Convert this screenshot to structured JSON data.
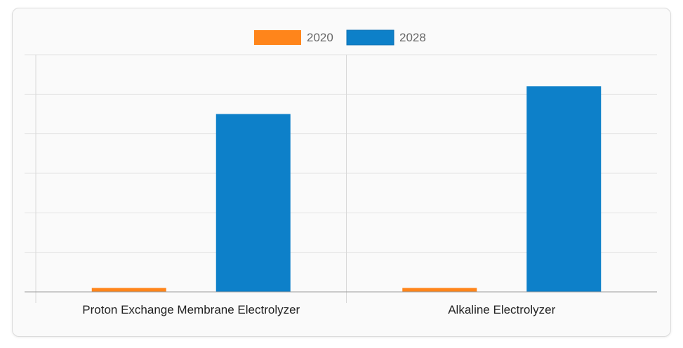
{
  "chart_data": {
    "type": "bar",
    "categories": [
      "Proton Exchange Membrane Electrolyzer",
      "Alkaline Electrolyzer"
    ],
    "series": [
      {
        "name": "2020",
        "values": [
          1,
          1
        ],
        "color": "#ff851b"
      },
      {
        "name": "2028",
        "values": [
          45,
          52
        ],
        "color": "#0d80c9"
      }
    ],
    "title": "",
    "xlabel": "",
    "ylabel": "",
    "ylim": [
      0,
      60
    ],
    "grid": true,
    "legend_position": "top-center"
  }
}
